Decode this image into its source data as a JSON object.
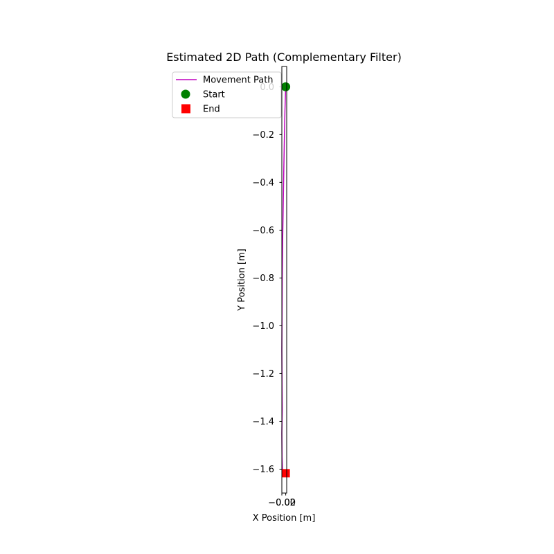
{
  "chart_data": {
    "type": "line",
    "title": "Estimated 2D Path (Complementary Filter)",
    "xlabel": "X Position [m]",
    "ylabel": "Y Position [m]",
    "xlim": [
      -0.02,
      0.005
    ],
    "ylim": [
      -1.7,
      0.085
    ],
    "xticks": [
      -0.02,
      0.0
    ],
    "xtick_labels": [
      "−0.02",
      "0.00"
    ],
    "yticks": [
      0.0,
      -0.2,
      -0.4,
      -0.6,
      -0.8,
      -1.0,
      -1.2,
      -1.4,
      -1.6
    ],
    "ytick_labels": [
      "0.0",
      "−0.2",
      "−0.4",
      "−0.6",
      "−0.8",
      "−1.0",
      "−1.2",
      "−1.4",
      "−1.6"
    ],
    "grid": false,
    "legend_position": "upper-left",
    "series": [
      {
        "name": "Movement Path",
        "kind": "line",
        "color": "#bf00bf",
        "x": [
          0.0,
          -0.001,
          -0.004,
          -0.007,
          -0.01,
          -0.013,
          -0.016,
          -0.018,
          -0.019,
          -0.02,
          -0.019,
          -0.018,
          -0.02,
          -0.019,
          -0.017,
          -0.014,
          -0.011,
          -0.008,
          -0.005,
          -0.002,
          0.0
        ],
        "y": [
          0.0,
          -0.02,
          -0.1,
          -0.22,
          -0.35,
          -0.5,
          -0.65,
          -0.8,
          -0.95,
          -1.1,
          -1.25,
          -1.35,
          -1.45,
          -1.55,
          -1.6,
          -1.62,
          -1.62,
          -1.62,
          -1.62,
          -1.62,
          -1.62
        ]
      },
      {
        "name": "Start",
        "kind": "marker",
        "marker": "circle",
        "color": "#008000",
        "x": [
          0.0
        ],
        "y": [
          0.0
        ]
      },
      {
        "name": "End",
        "kind": "marker",
        "marker": "square",
        "color": "#ff0000",
        "x": [
          0.0
        ],
        "y": [
          -1.617
        ]
      }
    ]
  }
}
